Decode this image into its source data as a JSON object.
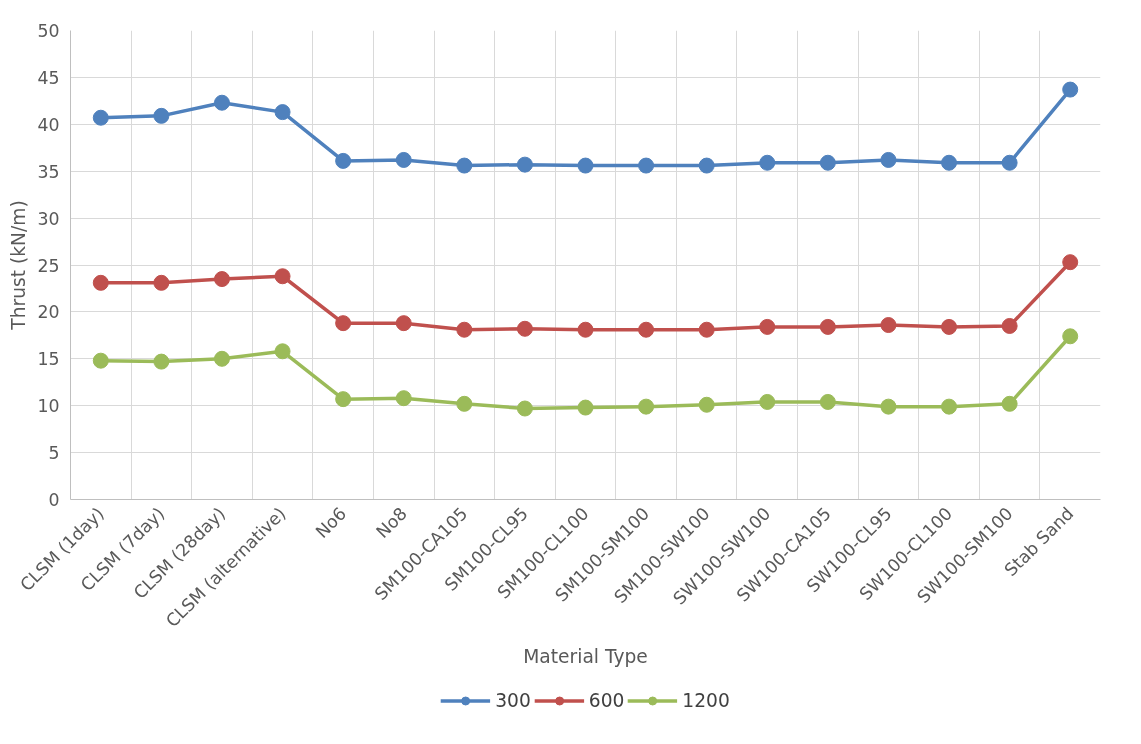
{
  "chart_data": {
    "type": "line",
    "xlabel": "Material Type",
    "ylabel": "Thrust (kN/m)",
    "categories": [
      "CLSM (1day)",
      "CLSM (7day)",
      "CLSM (28day)",
      "CLSM (alternative)",
      "No6",
      "No8",
      "SM100-CA105",
      "SM100-CL95",
      "SM100-CL100",
      "SM100-SM100",
      "SM100-SW100",
      "SW100-SW100",
      "SW100-CA105",
      "SW100-CL95",
      "SW100-CL100",
      "SW100-SM100",
      "Stab Sand"
    ],
    "series": [
      {
        "name": "300",
        "color": "#4f81bd",
        "values": [
          40.7,
          40.9,
          42.3,
          41.3,
          36.1,
          36.2,
          35.6,
          35.7,
          35.6,
          35.6,
          35.6,
          35.9,
          35.9,
          36.2,
          35.9,
          35.9,
          43.7
        ]
      },
      {
        "name": "600",
        "color": "#c0504d",
        "values": [
          23.1,
          23.1,
          23.5,
          23.8,
          18.8,
          18.8,
          18.1,
          18.2,
          18.1,
          18.1,
          18.1,
          18.4,
          18.4,
          18.6,
          18.4,
          18.5,
          25.3
        ]
      },
      {
        "name": "1200",
        "color": "#9bbb59",
        "values": [
          14.8,
          14.7,
          15.0,
          15.8,
          10.7,
          10.8,
          10.2,
          9.7,
          9.8,
          9.9,
          10.1,
          10.4,
          10.4,
          9.9,
          9.9,
          10.2,
          17.4
        ]
      }
    ],
    "ylim": [
      0,
      50
    ],
    "yticks": [
      0,
      5,
      10,
      15,
      20,
      25,
      30,
      35,
      40,
      45,
      50
    ],
    "grid": true,
    "legend": "bottom",
    "marker": "circle",
    "line_style": "solid"
  }
}
